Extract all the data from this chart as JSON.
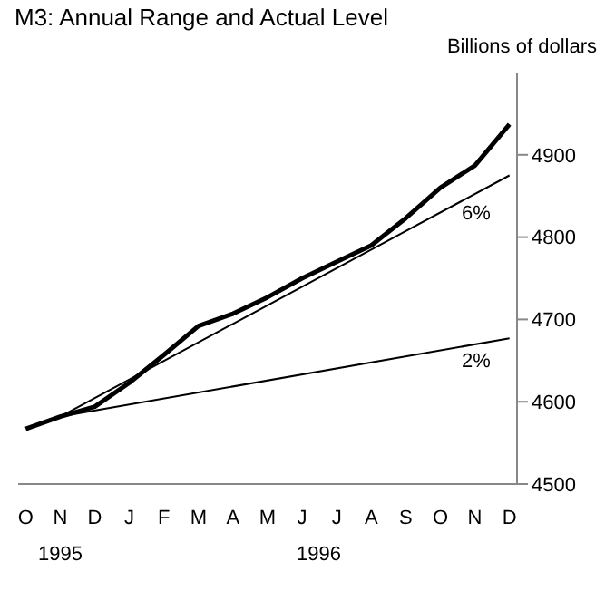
{
  "chart_data": {
    "type": "line",
    "title": "M3: Annual Range and Actual Level",
    "ylabel": "Billions of dollars",
    "categories": [
      "O",
      "N",
      "D",
      "J",
      "F",
      "M",
      "A",
      "M",
      "J",
      "J",
      "A",
      "S",
      "O",
      "N",
      "D"
    ],
    "annotations": [
      "1995",
      "1996"
    ],
    "series": [
      {
        "color": "#000000",
        "values": [
          4567,
          4582,
          4594,
          4623,
          4657,
          4692,
          4707,
          4727,
          4750,
          4770,
          4790,
          4823,
          4860,
          4887,
          4937
        ]
      },
      {
        "name": "6%",
        "color": "#000000",
        "values": [
          null,
          4582,
          null,
          null,
          null,
          null,
          null,
          null,
          null,
          null,
          null,
          null,
          null,
          null,
          4875
        ]
      },
      {
        "name": "2%",
        "color": "#000000",
        "values": [
          null,
          4582,
          null,
          null,
          null,
          null,
          null,
          null,
          null,
          null,
          null,
          null,
          null,
          null,
          4677
        ]
      }
    ],
    "ylim": [
      4500,
      5000
    ],
    "yticks": [
      4500,
      4600,
      4700,
      4800,
      4900
    ],
    "legend": false,
    "marker": "none",
    "line_style": "solid"
  }
}
